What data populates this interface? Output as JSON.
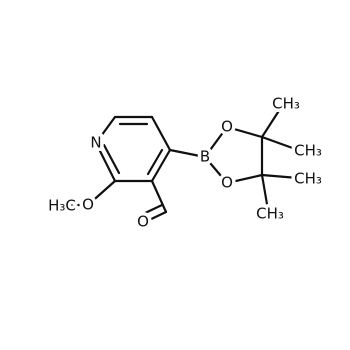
{
  "atoms": {
    "n1": "N",
    "o_methoxy": "O",
    "methyl": "H₃C",
    "o_aldehyde": "O",
    "boron": "B",
    "o_upper": "O",
    "o_lower": "O",
    "me1": "CH₃",
    "me2": "CH₃",
    "me3": "CH₃",
    "me4": "CH₃"
  }
}
